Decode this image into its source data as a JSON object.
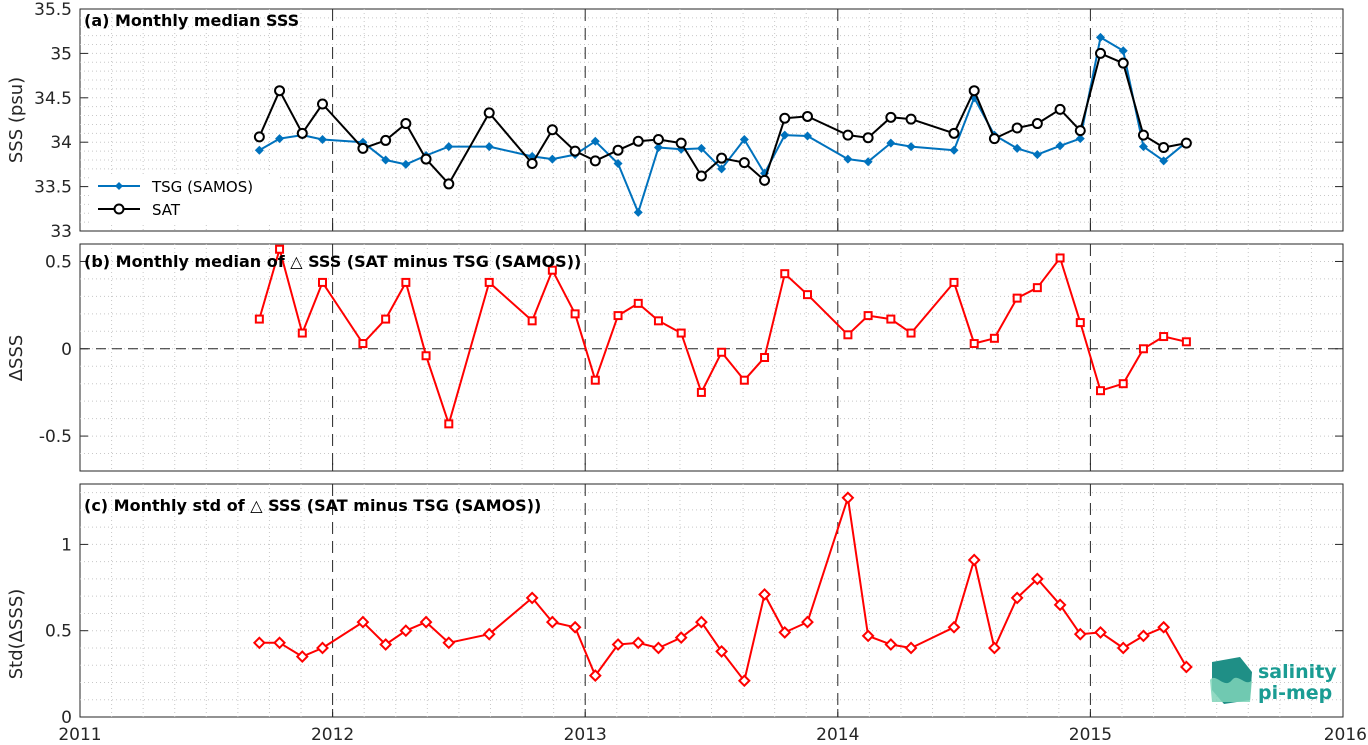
{
  "chart_data": [
    {
      "type": "line",
      "title": "(a) Monthly median SSS",
      "ylabel": "SSS (psu)",
      "xlim": [
        2011,
        2016
      ],
      "ylim": [
        33,
        35.5
      ],
      "x_ticks": [
        "2011",
        "2012",
        "2013",
        "2014",
        "2015",
        "2016"
      ],
      "y_ticks": [
        "33",
        "33.5",
        "34",
        "34.5",
        "35",
        "35.5"
      ],
      "grid": "on",
      "legend": "left",
      "x": [
        2011.71,
        2011.79,
        2011.88,
        2011.96,
        2012.12,
        2012.21,
        2012.29,
        2012.37,
        2012.46,
        2012.62,
        2012.79,
        2012.87,
        2012.96,
        2013.04,
        2013.13,
        2013.21,
        2013.29,
        2013.38,
        2013.46,
        2013.54,
        2013.63,
        2013.71,
        2013.79,
        2013.88,
        2014.04,
        2014.12,
        2014.21,
        2014.29,
        2014.46,
        2014.54,
        2014.62,
        2014.71,
        2014.79,
        2014.88,
        2014.96,
        2015.04,
        2015.13,
        2015.21,
        2015.29,
        2015.38
      ],
      "series": [
        {
          "name": "TSG (SAMOS)",
          "color": "#0072bd",
          "marker": "diamond",
          "values": [
            33.91,
            34.04,
            34.08,
            34.03,
            34.0,
            33.8,
            33.75,
            33.85,
            33.95,
            33.95,
            33.84,
            33.81,
            33.86,
            34.01,
            33.76,
            33.21,
            33.94,
            33.92,
            33.93,
            33.7,
            34.03,
            33.65,
            34.08,
            34.07,
            33.81,
            33.78,
            33.99,
            33.95,
            33.91,
            34.5,
            34.08,
            33.93,
            33.86,
            33.96,
            34.04,
            35.18,
            35.03,
            33.95,
            33.79,
            34.0
          ]
        },
        {
          "name": "SAT",
          "color": "#000000",
          "marker": "circle",
          "values": [
            34.06,
            34.58,
            34.1,
            34.43,
            33.93,
            34.02,
            34.21,
            33.81,
            33.53,
            34.33,
            33.76,
            34.14,
            33.9,
            33.79,
            33.91,
            34.01,
            34.03,
            33.99,
            33.62,
            33.82,
            33.77,
            33.57,
            34.27,
            34.29,
            34.08,
            34.05,
            34.28,
            34.26,
            34.1,
            34.58,
            34.04,
            34.16,
            34.21,
            34.37,
            34.13,
            35.0,
            34.89,
            34.08,
            33.94,
            33.99
          ]
        }
      ]
    },
    {
      "type": "line",
      "title": "(b) Monthly median of △ SSS (SAT minus TSG (SAMOS))",
      "ylabel": "ΔSSS",
      "xlim": [
        2011,
        2016
      ],
      "ylim": [
        -0.7,
        0.6
      ],
      "y_ticks": [
        "-0.5",
        "0",
        "0.5"
      ],
      "grid": "on",
      "x": [
        2011.71,
        2011.79,
        2011.88,
        2011.96,
        2012.12,
        2012.21,
        2012.29,
        2012.37,
        2012.46,
        2012.62,
        2012.79,
        2012.87,
        2012.96,
        2013.04,
        2013.13,
        2013.21,
        2013.29,
        2013.38,
        2013.46,
        2013.54,
        2013.63,
        2013.71,
        2013.79,
        2013.88,
        2014.04,
        2014.12,
        2014.21,
        2014.29,
        2014.46,
        2014.54,
        2014.62,
        2014.71,
        2014.79,
        2014.88,
        2014.96,
        2015.04,
        2015.13,
        2015.21,
        2015.29,
        2015.38
      ],
      "series": [
        {
          "color": "#ff0000",
          "marker": "square",
          "values": [
            0.17,
            0.57,
            0.09,
            0.38,
            0.03,
            0.17,
            0.38,
            -0.04,
            -0.43,
            0.38,
            0.16,
            0.45,
            0.2,
            -0.18,
            0.19,
            0.26,
            0.16,
            0.09,
            -0.25,
            -0.02,
            -0.18,
            -0.05,
            0.43,
            0.31,
            0.08,
            0.19,
            0.17,
            0.09,
            0.38,
            0.03,
            0.06,
            0.29,
            0.35,
            0.52,
            0.15,
            -0.24,
            -0.2,
            0.0,
            0.07,
            0.04
          ]
        }
      ]
    },
    {
      "type": "line",
      "title": "(c) Monthly std of △ SSS (SAT minus TSG (SAMOS))",
      "ylabel": "Std(ΔSSS)",
      "xlim": [
        2011,
        2016
      ],
      "ylim": [
        0,
        1.35
      ],
      "x_ticks": [
        "2011",
        "2012",
        "2013",
        "2014",
        "2015",
        "2016"
      ],
      "y_ticks": [
        "0",
        "0.5",
        "1"
      ],
      "grid": "on",
      "x": [
        2011.71,
        2011.79,
        2011.88,
        2011.96,
        2012.12,
        2012.21,
        2012.29,
        2012.37,
        2012.46,
        2012.62,
        2012.79,
        2012.87,
        2012.96,
        2013.04,
        2013.13,
        2013.21,
        2013.29,
        2013.38,
        2013.46,
        2013.54,
        2013.63,
        2013.71,
        2013.79,
        2013.88,
        2014.04,
        2014.12,
        2014.21,
        2014.29,
        2014.46,
        2014.54,
        2014.62,
        2014.71,
        2014.79,
        2014.88,
        2014.96,
        2015.04,
        2015.13,
        2015.21,
        2015.29,
        2015.38
      ],
      "series": [
        {
          "color": "#ff0000",
          "marker": "diamond",
          "values": [
            0.43,
            0.43,
            0.35,
            0.4,
            0.55,
            0.42,
            0.5,
            0.55,
            0.43,
            0.48,
            0.69,
            0.55,
            0.52,
            0.24,
            0.42,
            0.43,
            0.4,
            0.46,
            0.55,
            0.38,
            0.21,
            0.71,
            0.49,
            0.55,
            1.27,
            0.47,
            0.42,
            0.4,
            0.52,
            0.91,
            0.4,
            0.69,
            0.8,
            0.65,
            0.48,
            0.49,
            0.4,
            0.47,
            0.52,
            0.29
          ]
        }
      ]
    }
  ],
  "logo": {
    "line1": "salinity",
    "line2": "pi-mep",
    "colors": {
      "dark": "#1f8f86",
      "light": "#7fd3b8",
      "text": "#1a9c93"
    }
  }
}
